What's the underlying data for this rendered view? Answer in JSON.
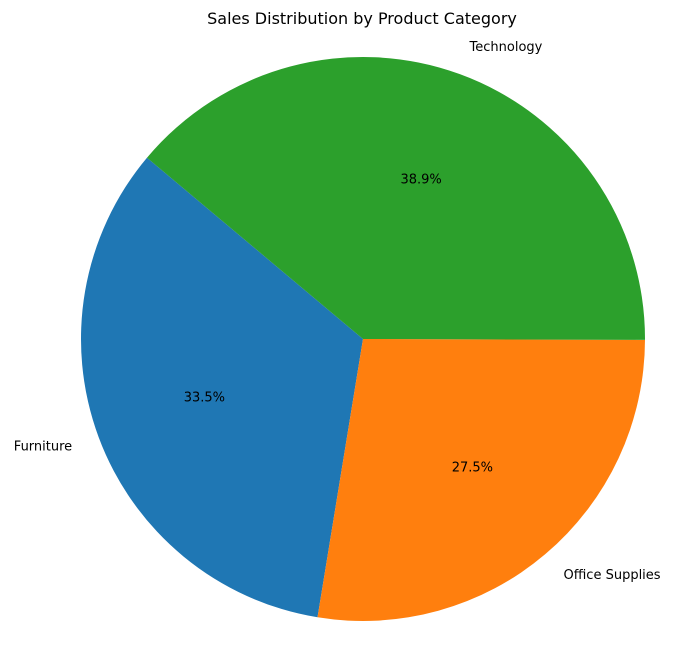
{
  "chart_data": {
    "type": "pie",
    "title": "Sales Distribution by Product Category",
    "slices": [
      {
        "name": "Furniture",
        "percent": 33.5,
        "percent_label": "33.5%",
        "color": "#1f77b4"
      },
      {
        "name": "Office Supplies",
        "percent": 27.5,
        "percent_label": "27.5%",
        "color": "#ff7f0e"
      },
      {
        "name": "Technology",
        "percent": 38.9,
        "percent_label": "38.9%",
        "color": "#2ca02c"
      }
    ],
    "start_angle_deg": 140,
    "direction": "counterclockwise"
  }
}
